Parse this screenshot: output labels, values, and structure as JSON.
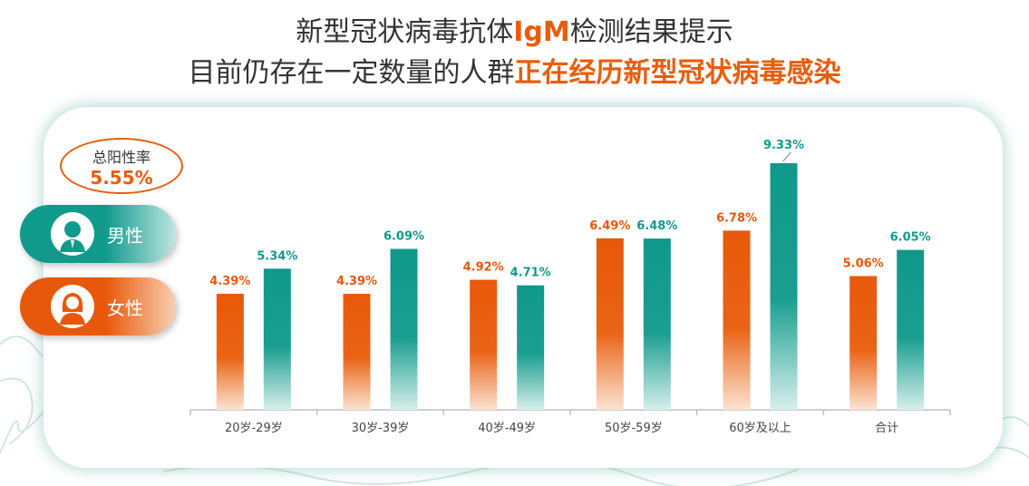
{
  "header": {
    "line1_pre": "新型冠状病毒抗体",
    "line1_hl": "IgM",
    "line1_post": "检测结果提示",
    "line2_pre": "目前仍存在一定数量的人群",
    "line2_hl": "正在经历新型冠状病毒感染"
  },
  "positive_rate": {
    "label": "总阳性率",
    "value": "5.55%"
  },
  "legend": {
    "male": "男性",
    "female": "女性"
  },
  "colors": {
    "female": "#e8580a",
    "male": "#109a8c",
    "highlight": "#e85d0c"
  },
  "chart_data": {
    "type": "bar",
    "categories": [
      "20岁-29岁",
      "30岁-39岁",
      "40岁-49岁",
      "50岁-59岁",
      "60岁及以上",
      "合计"
    ],
    "series": [
      {
        "name": "女性",
        "values": [
          4.39,
          4.39,
          4.92,
          6.49,
          6.78,
          5.06
        ],
        "labels": [
          "4.39%",
          "4.39%",
          "4.92%",
          "6.49%",
          "6.78%",
          "5.06%"
        ],
        "color": "#e8580a"
      },
      {
        "name": "男性",
        "values": [
          5.34,
          6.09,
          4.71,
          6.48,
          9.33,
          6.05
        ],
        "labels": [
          "5.34%",
          "6.09%",
          "4.71%",
          "6.48%",
          "9.33%",
          "6.05%"
        ],
        "color": "#109a8c"
      }
    ],
    "ylim": [
      0,
      10
    ],
    "grid": false,
    "legend": "left"
  }
}
